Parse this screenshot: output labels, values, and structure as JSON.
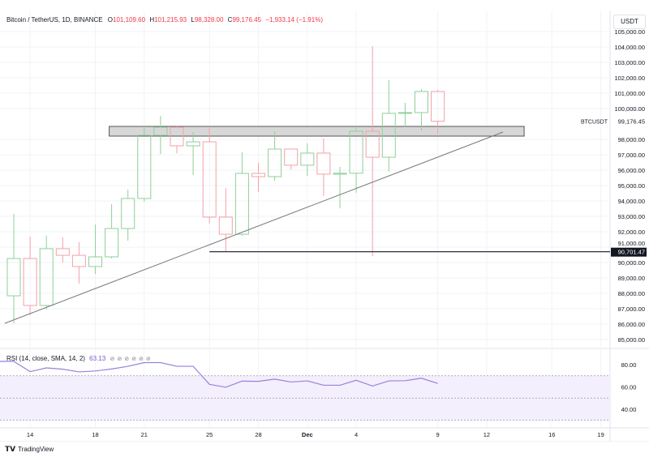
{
  "header": {
    "title": "Bitcoin / TetherUS, 1D, BINANCE",
    "open_label": "O",
    "open": "101,109.60",
    "high_label": "H",
    "high": "101,215.93",
    "low_label": "L",
    "low": "98,328.00",
    "close_label": "C",
    "close": "99,176.45",
    "change": "−1,933.14 (−1.91%)"
  },
  "currency_button": "USDT",
  "rsi": {
    "label": "RSI (14, close, SMA, 14, 2)",
    "value": "63.13",
    "hidden_icons": [
      "eye-off-icon",
      "eye-off-icon",
      "eye-off-icon",
      "eye-off-icon",
      "eye-off-icon",
      "eye-off-icon"
    ]
  },
  "footer": {
    "brand": "TradingView",
    "logo_text": "TV"
  },
  "colors": {
    "up": "#8fd09a",
    "down": "#f5a0a9",
    "rsi": "#9b7fdc",
    "rsi_band": "#f3effc",
    "zone": "#d0d0d0"
  },
  "chart_data": {
    "type": "candlestick",
    "symbol": "BTCUSDT",
    "start_date": "Nov 13",
    "ohlc": [
      [
        87840,
        93160,
        86050,
        90260
      ],
      [
        90260,
        91680,
        86580,
        87210
      ],
      [
        87210,
        91740,
        86950,
        90900
      ],
      [
        90900,
        91630,
        90000,
        90470
      ],
      [
        90470,
        91320,
        88630,
        89740
      ],
      [
        89740,
        92470,
        89260,
        90370
      ],
      [
        90370,
        93790,
        90260,
        92210
      ],
      [
        92210,
        94740,
        91420,
        94160
      ],
      [
        94160,
        98900,
        93950,
        98260
      ],
      [
        98260,
        99530,
        97050,
        98790
      ],
      [
        98790,
        98840,
        97100,
        97580
      ],
      [
        97580,
        98470,
        95680,
        97840
      ],
      [
        97840,
        98840,
        92530,
        92950
      ],
      [
        92950,
        94840,
        90680,
        91840
      ],
      [
        91840,
        97160,
        91740,
        95790
      ],
      [
        95790,
        96470,
        94580,
        95580
      ],
      [
        95580,
        98530,
        95320,
        97370
      ],
      [
        97370,
        97400,
        96050,
        96320
      ],
      [
        96320,
        97740,
        95630,
        97110
      ],
      [
        97110,
        98050,
        94320,
        95740
      ],
      [
        95740,
        96210,
        93530,
        95800
      ],
      [
        95800,
        98900,
        94530,
        98530
      ],
      [
        98530,
        104050,
        90420,
        96840
      ],
      [
        96840,
        101840,
        95900,
        99690
      ],
      [
        99690,
        100370,
        98790,
        99740
      ],
      [
        99740,
        101260,
        98580,
        101110
      ],
      [
        101109.6,
        101215.93,
        98328.0,
        99176.45
      ]
    ],
    "rsi_values": [
      82.9,
      73.7,
      77.1,
      75.9,
      73.5,
      74.3,
      76.1,
      78.5,
      81.8,
      81.8,
      78.5,
      78.5,
      62.3,
      59.7,
      65.2,
      65.0,
      67.0,
      64.4,
      65.4,
      61.5,
      61.5,
      66.0,
      60.8,
      65.4,
      65.6,
      67.8,
      63.13
    ],
    "rsi_bands": {
      "upper": 70,
      "middle": 50,
      "lower": 30
    },
    "rsi_axis_labels": [
      "80.00",
      "60.00",
      "40.00"
    ],
    "rsi_axis_values": [
      80,
      60,
      40
    ],
    "price_range": [
      84500,
      105500
    ],
    "price_axis_values": [
      105000,
      104000,
      103000,
      102000,
      101000,
      100000,
      98000,
      97000,
      96000,
      95000,
      94000,
      93000,
      92000,
      91000,
      90000,
      89000,
      88000,
      87000,
      86000,
      85000
    ],
    "price_axis_labels": [
      "105,000.00",
      "104,000.00",
      "103,000.00",
      "102,000.00",
      "101,000.00",
      "100,000.00",
      "98,000.00",
      "97,000.00",
      "96,000.00",
      "95,000.00",
      "94,000.00",
      "93,000.00",
      "92,000.00",
      "91,000.00",
      "90,000.00",
      "89,000.00",
      "88,000.00",
      "87,000.00",
      "86,000.00",
      "85,000.00"
    ],
    "x_ticks": [
      {
        "day": 1,
        "label": "14"
      },
      {
        "day": 5,
        "label": "18"
      },
      {
        "day": 8,
        "label": "21"
      },
      {
        "day": 12,
        "label": "25"
      },
      {
        "day": 15,
        "label": "28"
      },
      {
        "day": 18,
        "label": "Dec",
        "bold": true
      },
      {
        "day": 21,
        "label": "4"
      },
      {
        "day": 26,
        "label": "9"
      },
      {
        "day": 29,
        "label": "12"
      },
      {
        "day": 33,
        "label": "16"
      },
      {
        "day": 36,
        "label": "19"
      }
    ],
    "last_price": {
      "symbol": "BTCUSDT",
      "value": 99176.45,
      "label": "99,176.45"
    },
    "horizontal_line": {
      "value": 90701.47,
      "label": "90,701.47",
      "from_day": 12
    },
    "resistance_zone": {
      "top": 98842,
      "bottom": 98211,
      "from_day": 6,
      "to_day": 31
    },
    "trendline": {
      "from": {
        "day": -0.55,
        "price": 86053
      },
      "to": {
        "day": 30.0,
        "price": 98474
      }
    }
  }
}
